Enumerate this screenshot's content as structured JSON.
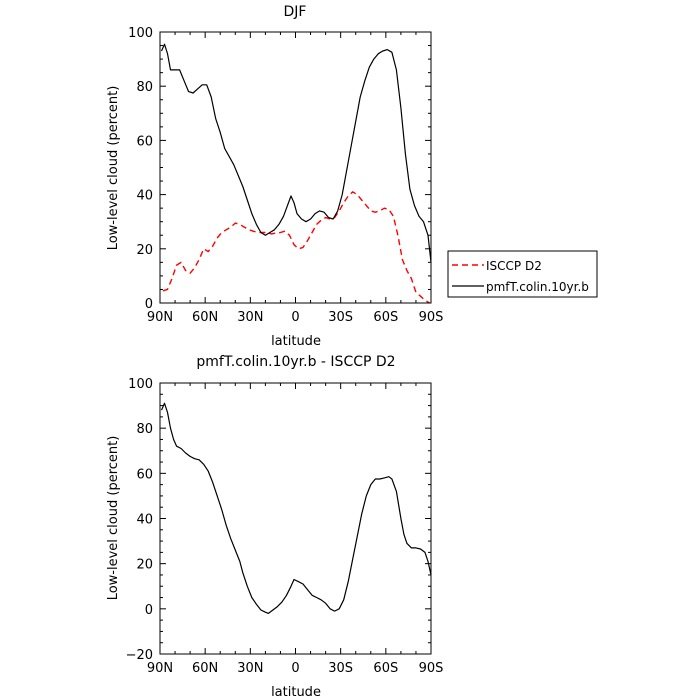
{
  "chart_data": [
    {
      "type": "line",
      "title": "DJF",
      "xlabel": "latitude",
      "ylabel": "Low-level cloud (percent)",
      "xlim": [
        90,
        -90
      ],
      "ylim": [
        0,
        100
      ],
      "x_ticks": [
        90,
        60,
        30,
        0,
        -30,
        -60,
        -90
      ],
      "x_tick_labels": [
        "90N",
        "60N",
        "30N",
        "0",
        "30S",
        "60S",
        "90S"
      ],
      "y_ticks": [
        0,
        20,
        40,
        60,
        80,
        100
      ],
      "y_tick_labels": [
        "0",
        "20",
        "40",
        "60",
        "80",
        "100"
      ],
      "legend_position": "right",
      "series": [
        {
          "name": "ISCCP D2",
          "color": "#ff0000",
          "style": "dashed",
          "points": [
            [
              88,
              4.5
            ],
            [
              85,
              5
            ],
            [
              82,
              9
            ],
            [
              79,
              14
            ],
            [
              76,
              15
            ],
            [
              73,
              12
            ],
            [
              70,
              11
            ],
            [
              67,
              13
            ],
            [
              64,
              16
            ],
            [
              61,
              20
            ],
            [
              58,
              19
            ],
            [
              55,
              21
            ],
            [
              52,
              24
            ],
            [
              49,
              26
            ],
            [
              46,
              27
            ],
            [
              43,
              28
            ],
            [
              40,
              29.5
            ],
            [
              37,
              29
            ],
            [
              34,
              28
            ],
            [
              31,
              27
            ],
            [
              28,
              26.5
            ],
            [
              25,
              26
            ],
            [
              22,
              26
            ],
            [
              19,
              26
            ],
            [
              16,
              25.5
            ],
            [
              13,
              25.8
            ],
            [
              10,
              26
            ],
            [
              7,
              26.5
            ],
            [
              4,
              25
            ],
            [
              1,
              21.5
            ],
            [
              -2,
              20
            ],
            [
              -5,
              20.5
            ],
            [
              -8,
              23
            ],
            [
              -11,
              26
            ],
            [
              -14,
              29
            ],
            [
              -17,
              30.5
            ],
            [
              -20,
              31.5
            ],
            [
              -23,
              31
            ],
            [
              -26,
              31.5
            ],
            [
              -29,
              34
            ],
            [
              -32,
              37
            ],
            [
              -35,
              39.5
            ],
            [
              -38,
              41
            ],
            [
              -41,
              40
            ],
            [
              -44,
              38
            ],
            [
              -47,
              36
            ],
            [
              -50,
              34
            ],
            [
              -53,
              33.5
            ],
            [
              -56,
              34
            ],
            [
              -59,
              35
            ],
            [
              -62,
              34.5
            ],
            [
              -65,
              32
            ],
            [
              -68,
              25
            ],
            [
              -71,
              16
            ],
            [
              -74,
              12
            ],
            [
              -77,
              9
            ],
            [
              -80,
              4
            ],
            [
              -83,
              2.5
            ],
            [
              -86,
              1
            ],
            [
              -89,
              0
            ]
          ]
        },
        {
          "name": "pmfT.colin.10yr.b",
          "color": "#000000",
          "style": "solid",
          "points": [
            [
              89,
              93
            ],
            [
              87,
              95.5
            ],
            [
              85,
              92
            ],
            [
              83,
              86
            ],
            [
              80,
              86
            ],
            [
              77,
              86
            ],
            [
              74,
              82
            ],
            [
              71,
              78
            ],
            [
              68,
              77.5
            ],
            [
              65,
              79
            ],
            [
              62,
              80.5
            ],
            [
              59,
              80.5
            ],
            [
              56,
              76
            ],
            [
              53,
              68
            ],
            [
              50,
              63
            ],
            [
              47,
              57
            ],
            [
              44,
              54
            ],
            [
              41,
              51
            ],
            [
              38,
              47
            ],
            [
              35,
              43
            ],
            [
              32,
              38
            ],
            [
              29,
              33
            ],
            [
              26,
              29
            ],
            [
              23,
              26
            ],
            [
              20,
              25
            ],
            [
              17,
              26
            ],
            [
              14,
              27
            ],
            [
              11,
              29
            ],
            [
              8,
              32
            ],
            [
              5,
              36.5
            ],
            [
              3,
              39.5
            ],
            [
              1,
              37
            ],
            [
              -1,
              33
            ],
            [
              -4,
              31
            ],
            [
              -7,
              30
            ],
            [
              -10,
              31
            ],
            [
              -13,
              33
            ],
            [
              -16,
              34
            ],
            [
              -19,
              33.5
            ],
            [
              -22,
              31.5
            ],
            [
              -25,
              31
            ],
            [
              -28,
              34
            ],
            [
              -31,
              40
            ],
            [
              -34,
              49
            ],
            [
              -37,
              58
            ],
            [
              -40,
              67
            ],
            [
              -43,
              76
            ],
            [
              -46,
              82
            ],
            [
              -49,
              87
            ],
            [
              -52,
              90
            ],
            [
              -55,
              92
            ],
            [
              -58,
              93
            ],
            [
              -61,
              93.5
            ],
            [
              -64,
              92.5
            ],
            [
              -67,
              86
            ],
            [
              -70,
              72
            ],
            [
              -73,
              55
            ],
            [
              -76,
              42
            ],
            [
              -79,
              36
            ],
            [
              -82,
              32
            ],
            [
              -85,
              30
            ],
            [
              -88,
              25
            ],
            [
              -90,
              15
            ]
          ]
        }
      ]
    },
    {
      "type": "line",
      "title": "pmfT.colin.10yr.b - ISCCP D2",
      "xlabel": "latitude",
      "ylabel": "Low-level cloud (percent)",
      "xlim": [
        90,
        -90
      ],
      "ylim": [
        -20,
        100
      ],
      "x_ticks": [
        90,
        60,
        30,
        0,
        -30,
        -60,
        -90
      ],
      "x_tick_labels": [
        "90N",
        "60N",
        "30N",
        "0",
        "30S",
        "60S",
        "90S"
      ],
      "y_ticks": [
        -20,
        0,
        20,
        40,
        60,
        80,
        100
      ],
      "y_tick_labels": [
        "−20",
        "0",
        "20",
        "40",
        "60",
        "80",
        "100"
      ],
      "series": [
        {
          "color": "#000000",
          "style": "solid",
          "points": [
            [
              89,
              88
            ],
            [
              87,
              91
            ],
            [
              85,
              87
            ],
            [
              83,
              80
            ],
            [
              81,
              75
            ],
            [
              79,
              72
            ],
            [
              76,
              71
            ],
            [
              73,
              69
            ],
            [
              70,
              67.5
            ],
            [
              67,
              66.5
            ],
            [
              64,
              66
            ],
            [
              61,
              64
            ],
            [
              58,
              61
            ],
            [
              55,
              56
            ],
            [
              52,
              50
            ],
            [
              49,
              44
            ],
            [
              46,
              37
            ],
            [
              43,
              31
            ],
            [
              40,
              26
            ],
            [
              37,
              21
            ],
            [
              35,
              16
            ],
            [
              32,
              10
            ],
            [
              29,
              5
            ],
            [
              26,
              2
            ],
            [
              23,
              -0.5
            ],
            [
              20,
              -1.5
            ],
            [
              18,
              -2
            ],
            [
              15,
              -0.5
            ],
            [
              12,
              1
            ],
            [
              9,
              3
            ],
            [
              6,
              6
            ],
            [
              3,
              10
            ],
            [
              1,
              13
            ],
            [
              -2,
              12
            ],
            [
              -5,
              11
            ],
            [
              -8,
              8.5
            ],
            [
              -11,
              6
            ],
            [
              -14,
              5
            ],
            [
              -17,
              4
            ],
            [
              -20,
              2.5
            ],
            [
              -23,
              0
            ],
            [
              -26,
              -1
            ],
            [
              -29,
              0
            ],
            [
              -32,
              4
            ],
            [
              -35,
              12
            ],
            [
              -38,
              22
            ],
            [
              -41,
              32
            ],
            [
              -44,
              42
            ],
            [
              -47,
              50
            ],
            [
              -50,
              55
            ],
            [
              -53,
              57.5
            ],
            [
              -56,
              57.5
            ],
            [
              -59,
              58
            ],
            [
              -62,
              58.5
            ],
            [
              -64,
              57.5
            ],
            [
              -67,
              52
            ],
            [
              -70,
              40
            ],
            [
              -72,
              33
            ],
            [
              -74,
              29
            ],
            [
              -77,
              27
            ],
            [
              -80,
              27
            ],
            [
              -83,
              26.5
            ],
            [
              -86,
              25
            ],
            [
              -88,
              21
            ],
            [
              -90,
              15
            ]
          ]
        }
      ]
    }
  ]
}
